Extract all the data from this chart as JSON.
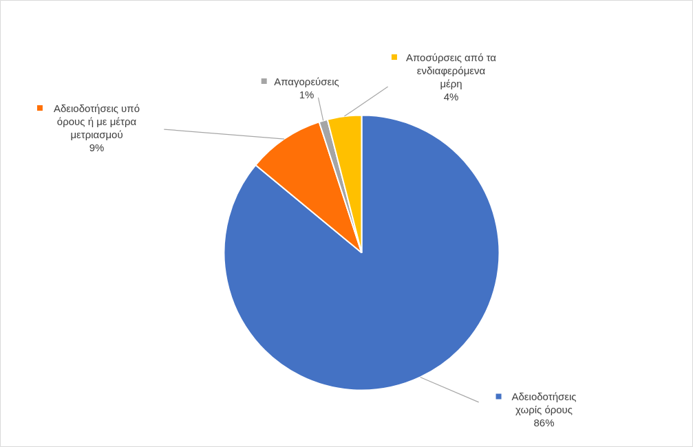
{
  "chart_data": {
    "type": "pie",
    "categories": [
      "Αδειοδοτήσεις χωρίς όρους",
      "Αδειοδοτήσεις υπό όρους ή με μέτρα μετριασμού",
      "Απαγορεύσεις",
      "Αποσύρσεις από τα ενδιαφερόμενα μέρη"
    ],
    "values": [
      86,
      9,
      1,
      4
    ],
    "colors": [
      "#4472c4",
      "#ff7007",
      "#a5a5a5",
      "#ffc000"
    ],
    "value_labels": [
      "86%",
      "9%",
      "1%",
      "4%"
    ],
    "legend": true
  }
}
